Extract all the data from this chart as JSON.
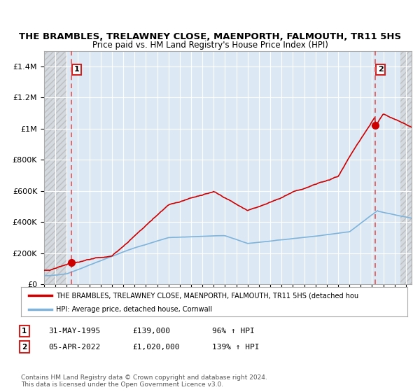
{
  "title": "THE BRAMBLES, TRELAWNEY CLOSE, MAENPORTH, FALMOUTH, TR11 5HS",
  "subtitle": "Price paid vs. HM Land Registry's House Price Index (HPI)",
  "legend_line1": "THE BRAMBLES, TRELAWNEY CLOSE, MAENPORTH, FALMOUTH, TR11 5HS (detached hou",
  "legend_line2": "HPI: Average price, detached house, Cornwall",
  "annotation1_label": "1",
  "annotation1_date": "31-MAY-1995",
  "annotation1_price": "£139,000",
  "annotation1_hpi": "96% ↑ HPI",
  "annotation2_label": "2",
  "annotation2_date": "05-APR-2022",
  "annotation2_price": "£1,020,000",
  "annotation2_hpi": "139% ↑ HPI",
  "point1_year": 1995.41,
  "point1_value": 139000,
  "point2_year": 2022.26,
  "point2_value": 1020000,
  "ylim": [
    0,
    1500000
  ],
  "bg_color": "#dce9f5",
  "grid_color": "#ffffff",
  "red_line_color": "#cc0000",
  "blue_line_color": "#7fb3d9",
  "dashed_line_color": "#e05555",
  "footer": "Contains HM Land Registry data © Crown copyright and database right 2024.\nThis data is licensed under the Open Government Licence v3.0."
}
